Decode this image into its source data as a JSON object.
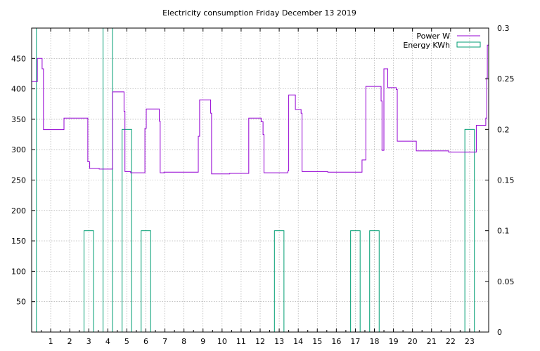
{
  "chart_data": {
    "type": "line",
    "title": "Electricity consumption Friday December 13 2019",
    "x_ticks": [
      "1",
      "2",
      "3",
      "4",
      "5",
      "6",
      "7",
      "8",
      "9",
      "10",
      "11",
      "12",
      "13",
      "14",
      "15",
      "16",
      "17",
      "18",
      "19",
      "20",
      "21",
      "22",
      "23"
    ],
    "y_left_ticks": [
      "50",
      "100",
      "150",
      "200",
      "250",
      "300",
      "350",
      "400",
      "450"
    ],
    "y_right_ticks": [
      "0",
      "0.05",
      "0.1",
      "0.15",
      "0.2",
      "0.25",
      "0.3"
    ],
    "xlim": [
      0,
      24
    ],
    "y_left_lim": [
      0,
      500
    ],
    "y_right_lim": [
      0,
      0.3
    ],
    "grid": true,
    "legend_position": "top-right",
    "colors": {
      "power": "#9400d3",
      "energy": "#009e73"
    },
    "series": [
      {
        "name": "Power W",
        "axis": "left",
        "points": [
          [
            0.0,
            412
          ],
          [
            0.3,
            412
          ],
          [
            0.3,
            450
          ],
          [
            0.55,
            450
          ],
          [
            0.55,
            433
          ],
          [
            0.62,
            433
          ],
          [
            0.62,
            333
          ],
          [
            1.7,
            333
          ],
          [
            1.7,
            352
          ],
          [
            2.95,
            352
          ],
          [
            2.95,
            280
          ],
          [
            3.05,
            280
          ],
          [
            3.05,
            269
          ],
          [
            3.55,
            269
          ],
          [
            3.55,
            268
          ],
          [
            4.25,
            268
          ],
          [
            4.25,
            395
          ],
          [
            4.85,
            395
          ],
          [
            4.85,
            363
          ],
          [
            4.9,
            363
          ],
          [
            4.9,
            264
          ],
          [
            5.2,
            264
          ],
          [
            5.2,
            262
          ],
          [
            5.95,
            262
          ],
          [
            5.95,
            335
          ],
          [
            6.02,
            335
          ],
          [
            6.02,
            367
          ],
          [
            6.7,
            367
          ],
          [
            6.7,
            347
          ],
          [
            6.75,
            347
          ],
          [
            6.75,
            262
          ],
          [
            6.95,
            262
          ],
          [
            6.95,
            263
          ],
          [
            8.75,
            263
          ],
          [
            8.75,
            322
          ],
          [
            8.82,
            322
          ],
          [
            8.82,
            382
          ],
          [
            9.4,
            382
          ],
          [
            9.4,
            360
          ],
          [
            9.45,
            360
          ],
          [
            9.45,
            260
          ],
          [
            10.4,
            260
          ],
          [
            10.4,
            261
          ],
          [
            11.4,
            261
          ],
          [
            11.4,
            352
          ],
          [
            12.05,
            352
          ],
          [
            12.05,
            346
          ],
          [
            12.15,
            346
          ],
          [
            12.15,
            325
          ],
          [
            12.2,
            325
          ],
          [
            12.2,
            262
          ],
          [
            13.45,
            262
          ],
          [
            13.45,
            265
          ],
          [
            13.5,
            265
          ],
          [
            13.5,
            390
          ],
          [
            13.85,
            390
          ],
          [
            13.85,
            366
          ],
          [
            14.15,
            366
          ],
          [
            14.15,
            360
          ],
          [
            14.2,
            360
          ],
          [
            14.2,
            264
          ],
          [
            15.55,
            264
          ],
          [
            15.55,
            263
          ],
          [
            17.35,
            263
          ],
          [
            17.35,
            283
          ],
          [
            17.55,
            283
          ],
          [
            17.55,
            404
          ],
          [
            18.35,
            404
          ],
          [
            18.35,
            380
          ],
          [
            18.4,
            380
          ],
          [
            18.4,
            299
          ],
          [
            18.5,
            299
          ],
          [
            18.5,
            433
          ],
          [
            18.7,
            433
          ],
          [
            18.7,
            402
          ],
          [
            19.15,
            402
          ],
          [
            19.15,
            399
          ],
          [
            19.2,
            399
          ],
          [
            19.2,
            314
          ],
          [
            20.2,
            314
          ],
          [
            20.2,
            298
          ],
          [
            21.9,
            298
          ],
          [
            21.9,
            296
          ],
          [
            23.35,
            296
          ],
          [
            23.35,
            340
          ],
          [
            23.85,
            340
          ],
          [
            23.85,
            352
          ],
          [
            23.9,
            352
          ],
          [
            23.9,
            418
          ],
          [
            23.93,
            418
          ],
          [
            23.93,
            472
          ],
          [
            24.0,
            472
          ]
        ]
      },
      {
        "name": "Energy KWh",
        "axis": "right",
        "bars": [
          {
            "x": 0.0,
            "value": 0.3
          },
          {
            "x": 3.0,
            "value": 0.1
          },
          {
            "x": 4.0,
            "value": 0.3
          },
          {
            "x": 5.0,
            "value": 0.2
          },
          {
            "x": 6.0,
            "value": 0.1
          },
          {
            "x": 13.0,
            "value": 0.1
          },
          {
            "x": 17.0,
            "value": 0.1
          },
          {
            "x": 18.0,
            "value": 0.1
          },
          {
            "x": 23.0,
            "value": 0.2
          }
        ],
        "bar_width": 0.5
      }
    ]
  }
}
